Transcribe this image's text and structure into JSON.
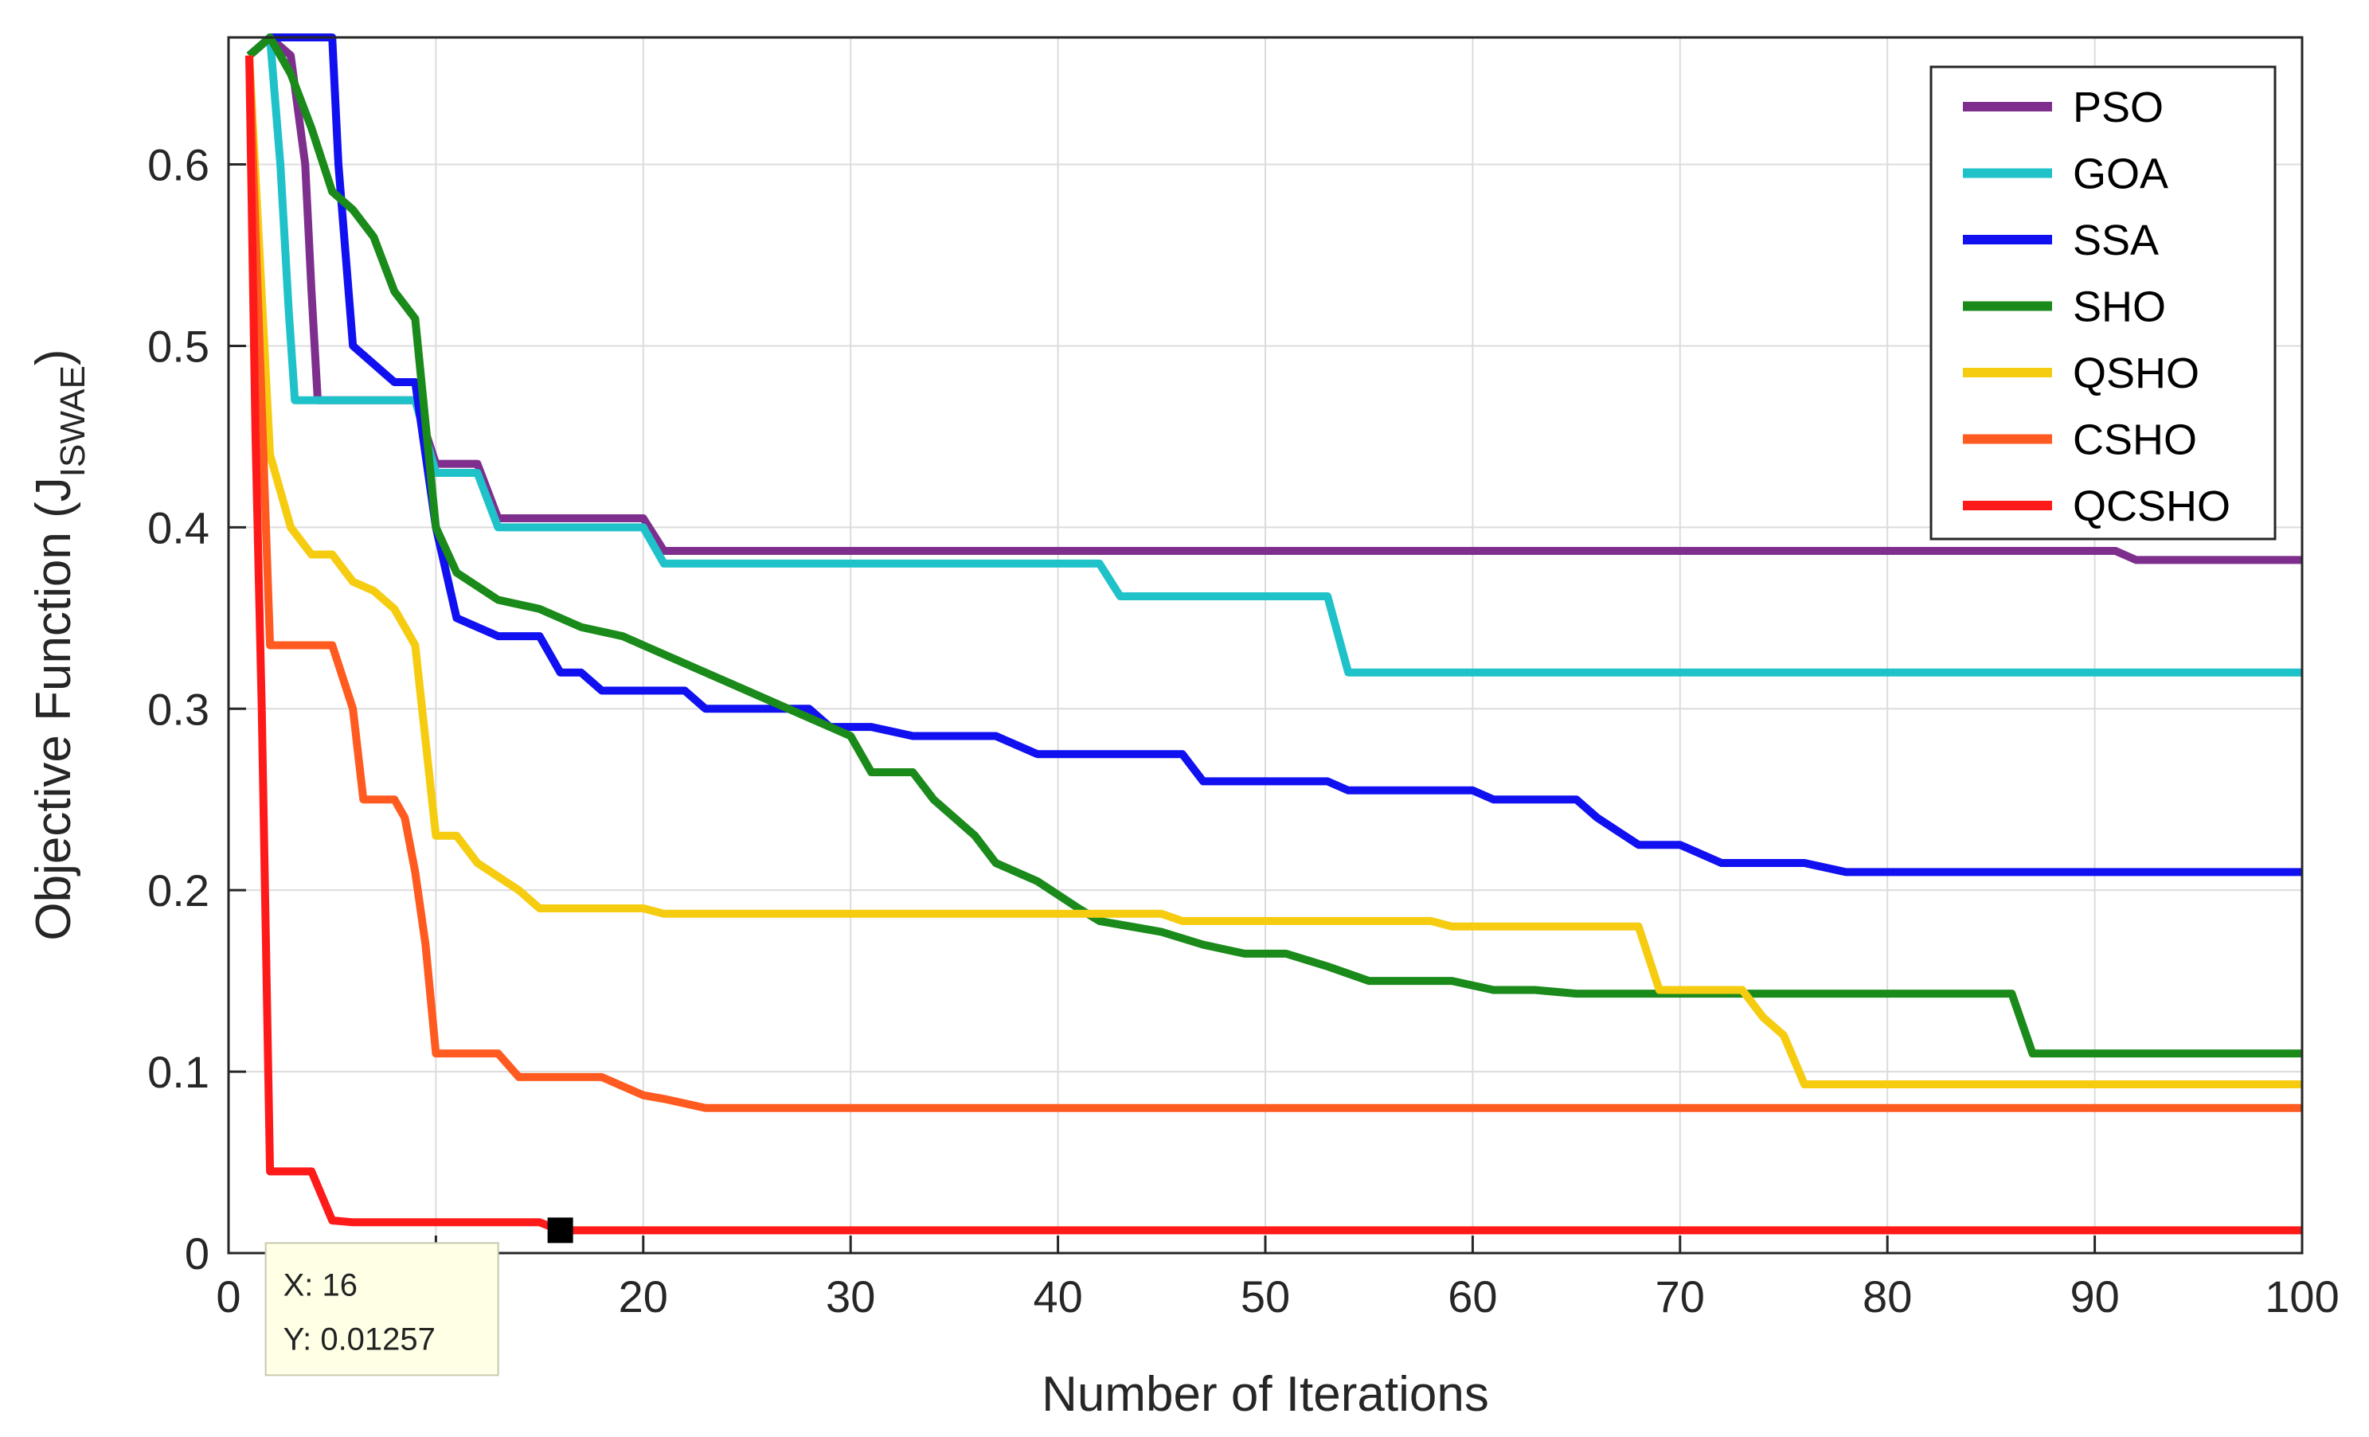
{
  "chart_data": {
    "type": "line",
    "title": "",
    "xlabel": "Number of Iterations",
    "ylabel": {
      "main": "Objective Function (J",
      "sub": "ISWAE",
      "close": ")"
    },
    "xlim": [
      0,
      100
    ],
    "ylim": [
      0,
      0.67
    ],
    "xticks": [
      0,
      10,
      20,
      30,
      40,
      50,
      60,
      70,
      80,
      90,
      100
    ],
    "yticks": [
      0,
      0.1,
      0.2,
      0.3,
      0.4,
      0.5,
      0.6
    ],
    "grid": true,
    "legend_position": "top-right",
    "series": [
      {
        "name": "PSO",
        "color": "#7E2F8E",
        "points": [
          [
            1,
            0.66
          ],
          [
            2,
            0.67
          ],
          [
            3,
            0.66
          ],
          [
            3.7,
            0.6
          ],
          [
            4,
            0.53
          ],
          [
            4.3,
            0.47
          ],
          [
            5,
            0.47
          ],
          [
            9,
            0.47
          ],
          [
            10,
            0.435
          ],
          [
            12,
            0.435
          ],
          [
            13,
            0.405
          ],
          [
            20,
            0.405
          ],
          [
            21,
            0.387
          ],
          [
            91,
            0.387
          ],
          [
            92,
            0.382
          ],
          [
            100,
            0.382
          ]
        ]
      },
      {
        "name": "GOA",
        "color": "#1FC2C9",
        "points": [
          [
            1,
            0.66
          ],
          [
            2,
            0.67
          ],
          [
            2.5,
            0.6
          ],
          [
            2.9,
            0.52
          ],
          [
            3.2,
            0.47
          ],
          [
            9,
            0.47
          ],
          [
            10,
            0.43
          ],
          [
            12,
            0.43
          ],
          [
            13,
            0.4
          ],
          [
            20,
            0.4
          ],
          [
            21,
            0.38
          ],
          [
            42,
            0.38
          ],
          [
            43,
            0.362
          ],
          [
            53,
            0.362
          ],
          [
            54,
            0.32
          ],
          [
            100,
            0.32
          ]
        ]
      },
      {
        "name": "SSA",
        "color": "#1010F0",
        "points": [
          [
            1,
            0.66
          ],
          [
            2,
            0.67
          ],
          [
            5,
            0.67
          ],
          [
            5.3,
            0.6
          ],
          [
            6,
            0.5
          ],
          [
            8,
            0.48
          ],
          [
            9,
            0.48
          ],
          [
            10,
            0.4
          ],
          [
            11,
            0.35
          ],
          [
            13,
            0.34
          ],
          [
            15,
            0.34
          ],
          [
            16,
            0.32
          ],
          [
            17,
            0.32
          ],
          [
            18,
            0.31
          ],
          [
            22,
            0.31
          ],
          [
            23,
            0.3
          ],
          [
            28,
            0.3
          ],
          [
            29,
            0.29
          ],
          [
            31,
            0.29
          ],
          [
            33,
            0.285
          ],
          [
            37,
            0.285
          ],
          [
            39,
            0.275
          ],
          [
            46,
            0.275
          ],
          [
            47,
            0.26
          ],
          [
            53,
            0.26
          ],
          [
            54,
            0.255
          ],
          [
            60,
            0.255
          ],
          [
            61,
            0.25
          ],
          [
            65,
            0.25
          ],
          [
            66,
            0.24
          ],
          [
            68,
            0.225
          ],
          [
            70,
            0.225
          ],
          [
            71,
            0.22
          ],
          [
            72,
            0.215
          ],
          [
            76,
            0.215
          ],
          [
            78,
            0.21
          ],
          [
            100,
            0.21
          ]
        ]
      },
      {
        "name": "SHO",
        "color": "#1A8A1A",
        "points": [
          [
            1,
            0.66
          ],
          [
            2,
            0.67
          ],
          [
            3,
            0.65
          ],
          [
            4,
            0.62
          ],
          [
            5,
            0.585
          ],
          [
            6,
            0.575
          ],
          [
            7,
            0.56
          ],
          [
            8,
            0.53
          ],
          [
            9,
            0.515
          ],
          [
            10,
            0.4
          ],
          [
            11,
            0.375
          ],
          [
            13,
            0.36
          ],
          [
            15,
            0.355
          ],
          [
            17,
            0.345
          ],
          [
            19,
            0.34
          ],
          [
            21,
            0.33
          ],
          [
            23,
            0.32
          ],
          [
            25,
            0.31
          ],
          [
            27,
            0.3
          ],
          [
            29,
            0.29
          ],
          [
            30,
            0.285
          ],
          [
            31,
            0.265
          ],
          [
            33,
            0.265
          ],
          [
            34,
            0.25
          ],
          [
            36,
            0.23
          ],
          [
            37,
            0.215
          ],
          [
            39,
            0.205
          ],
          [
            41,
            0.19
          ],
          [
            42,
            0.183
          ],
          [
            45,
            0.177
          ],
          [
            47,
            0.17
          ],
          [
            49,
            0.165
          ],
          [
            51,
            0.165
          ],
          [
            53,
            0.158
          ],
          [
            55,
            0.15
          ],
          [
            59,
            0.15
          ],
          [
            61,
            0.145
          ],
          [
            63,
            0.145
          ],
          [
            65,
            0.143
          ],
          [
            86,
            0.143
          ],
          [
            87,
            0.11
          ],
          [
            100,
            0.11
          ]
        ]
      },
      {
        "name": "QSHO",
        "color": "#F6CC11",
        "points": [
          [
            1,
            0.66
          ],
          [
            1.5,
            0.55
          ],
          [
            2,
            0.44
          ],
          [
            3,
            0.4
          ],
          [
            4,
            0.385
          ],
          [
            5,
            0.385
          ],
          [
            6,
            0.37
          ],
          [
            7,
            0.365
          ],
          [
            8,
            0.355
          ],
          [
            9,
            0.335
          ],
          [
            10,
            0.23
          ],
          [
            11,
            0.23
          ],
          [
            12,
            0.215
          ],
          [
            14,
            0.2
          ],
          [
            15,
            0.19
          ],
          [
            20,
            0.19
          ],
          [
            21,
            0.187
          ],
          [
            45,
            0.187
          ],
          [
            46,
            0.183
          ],
          [
            58,
            0.183
          ],
          [
            59,
            0.18
          ],
          [
            68,
            0.18
          ],
          [
            69,
            0.145
          ],
          [
            73,
            0.145
          ],
          [
            74,
            0.13
          ],
          [
            75,
            0.12
          ],
          [
            76,
            0.093
          ],
          [
            100,
            0.093
          ]
        ]
      },
      {
        "name": "CSHO",
        "color": "#FF5A1F",
        "points": [
          [
            1,
            0.66
          ],
          [
            1.5,
            0.5
          ],
          [
            2,
            0.335
          ],
          [
            5,
            0.335
          ],
          [
            6,
            0.3
          ],
          [
            6.5,
            0.25
          ],
          [
            8,
            0.25
          ],
          [
            8.5,
            0.24
          ],
          [
            9,
            0.21
          ],
          [
            9.5,
            0.17
          ],
          [
            10,
            0.11
          ],
          [
            13,
            0.11
          ],
          [
            14,
            0.097
          ],
          [
            18,
            0.097
          ],
          [
            20,
            0.087
          ],
          [
            21,
            0.085
          ],
          [
            23,
            0.08
          ],
          [
            100,
            0.08
          ]
        ]
      },
      {
        "name": "QCSHO",
        "color": "#FF1A1A",
        "points": [
          [
            1,
            0.66
          ],
          [
            1.3,
            0.45
          ],
          [
            1.6,
            0.3
          ],
          [
            2,
            0.045
          ],
          [
            4,
            0.045
          ],
          [
            5,
            0.018
          ],
          [
            6,
            0.017
          ],
          [
            15,
            0.017
          ],
          [
            16,
            0.01257
          ],
          [
            100,
            0.01257
          ]
        ]
      }
    ],
    "datatip": {
      "x_label": "X: 16",
      "y_label": "Y: 0.01257",
      "x": 16,
      "y": 0.01257
    }
  }
}
